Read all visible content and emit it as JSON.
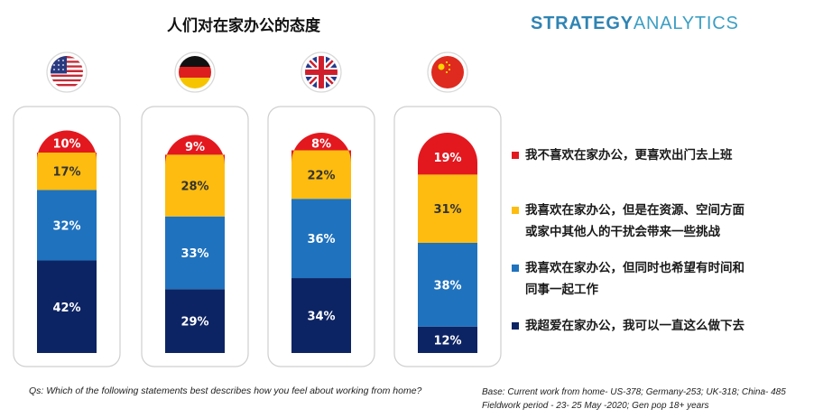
{
  "header": {
    "title": "人们对在家办公的态度",
    "brand_strong": "STRATEGY",
    "brand_light": "ANALYTICS"
  },
  "chart_data": {
    "type": "bar",
    "stacked": true,
    "title": "人们对在家办公的态度",
    "categories": [
      "United States",
      "Germany",
      "United Kingdom",
      "China"
    ],
    "flag_icons": [
      "us-flag-icon",
      "germany-flag-icon",
      "uk-flag-icon",
      "china-flag-icon"
    ],
    "series": [
      {
        "name": "我超爱在家办公，我可以一直这么做下去",
        "color": "#0d2464",
        "values": [
          42,
          29,
          34,
          12
        ]
      },
      {
        "name": "我喜欢在家办公，但同时也希望有时间和同事一起工作",
        "color": "#1f72be",
        "values": [
          32,
          33,
          36,
          38
        ]
      },
      {
        "name": "我喜欢在家办公，但是在资源、空间方面或家中其他人的干扰会带来一些挑战",
        "color": "#fdbc0f",
        "values": [
          17,
          28,
          22,
          31
        ]
      },
      {
        "name": "我不喜欢在家办公，更喜欢出门去上班",
        "color": "#e3181f",
        "values": [
          10,
          9,
          8,
          19
        ]
      }
    ],
    "unit": "%",
    "ylim": [
      0,
      100
    ]
  },
  "legend": {
    "items": [
      {
        "lines": [
          "我不喜欢在家办公，更喜欢出门去上班"
        ],
        "color": "#e3181f"
      },
      {
        "lines": [
          "我喜欢在家办公，但是在资源、空间方面",
          "或家中其他人的干扰会带来一些挑战"
        ],
        "color": "#fdbc0f"
      },
      {
        "lines": [
          "我喜欢在家办公，但同时也希望有时间和",
          "同事一起工作"
        ],
        "color": "#1f72be"
      },
      {
        "lines": [
          "我超爱在家办公，我可以一直这么做下去"
        ],
        "color": "#0d2464"
      }
    ]
  },
  "footnotes": {
    "question": "Qs:  Which of the following statements best describes how you feel about working from home?",
    "base": "Base: Current work from home- US-378; Germany-253; UK-318; China- 485",
    "fieldwork": "Fieldwork period - 23- 25 May -2020; Gen pop 18+ years"
  }
}
